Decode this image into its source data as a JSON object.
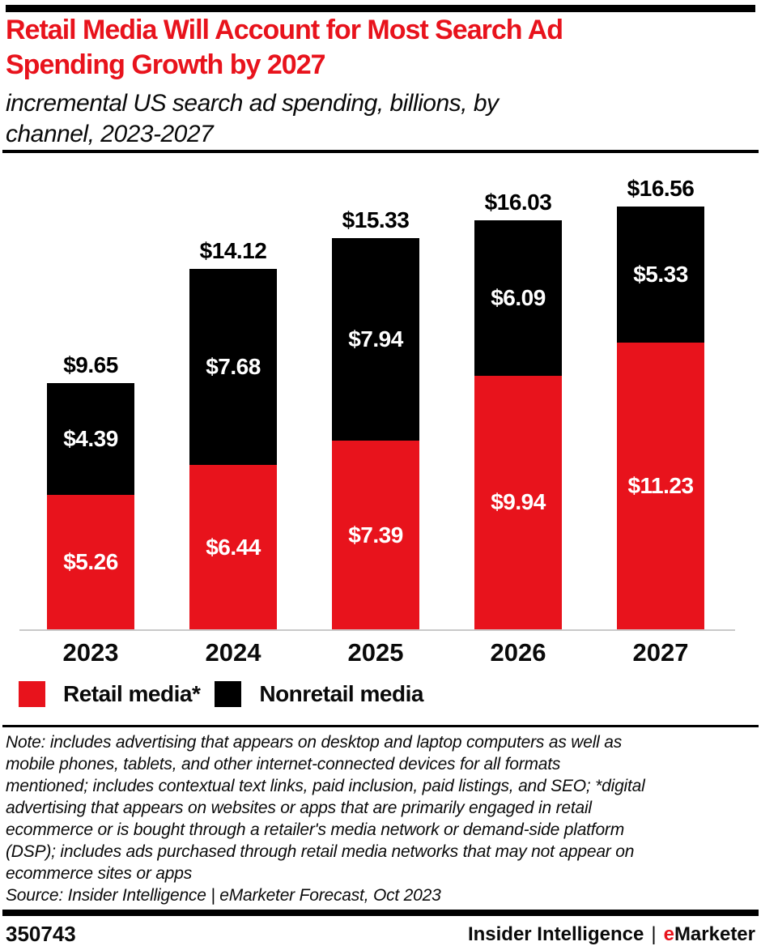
{
  "header": {
    "title": "Retail Media Will Account for Most Search Ad\nSpending Growth by 2027",
    "subtitle": "incremental US search ad spending, billions, by\nchannel, 2023-2027"
  },
  "chart_data": {
    "type": "bar",
    "stacked": true,
    "title": "Retail Media Will Account for Most Search Ad Spending Growth by 2027",
    "subtitle": "incremental US search ad spending, billions, by channel, 2023-2027",
    "xlabel": "",
    "ylabel": "",
    "units": "$ billions",
    "ylim": [
      0,
      16.56
    ],
    "grid": false,
    "legend_position": "bottom",
    "categories": [
      "2023",
      "2024",
      "2025",
      "2026",
      "2027"
    ],
    "series": [
      {
        "name": "Retail media*",
        "color": "#e8131c",
        "values": [
          5.26,
          6.44,
          7.39,
          9.94,
          11.23
        ],
        "labels": [
          "$5.26",
          "$6.44",
          "$7.39",
          "$9.94",
          "$11.23"
        ]
      },
      {
        "name": "Nonretail media",
        "color": "#000000",
        "values": [
          4.39,
          7.68,
          7.94,
          6.09,
          5.33
        ],
        "labels": [
          "$4.39",
          "$7.68",
          "$7.94",
          "$6.09",
          "$5.33"
        ]
      }
    ],
    "totals": [
      9.65,
      14.12,
      15.33,
      16.03,
      16.56
    ],
    "total_labels": [
      "$9.65",
      "$14.12",
      "$15.33",
      "$16.03",
      "$16.56"
    ]
  },
  "legend": {
    "items": [
      {
        "label": "Retail media*",
        "color": "#e8131c"
      },
      {
        "label": "Nonretail media",
        "color": "#000000"
      }
    ]
  },
  "note": {
    "text": "Note: includes advertising that appears on desktop and laptop computers as well as\nmobile phones, tablets, and other internet-connected devices for all formats\nmentioned; includes contextual text links, paid inclusion, paid listings, and SEO; *digital\nadvertising that appears on websites or apps that are primarily engaged in retail\necommerce or is bought through a retailer's media network or demand-side platform\n(DSP); includes ads purchased through retail media networks that may not appear on\necommerce sites or apps",
    "source": "Source: Insider Intelligence | eMarketer Forecast, Oct 2023"
  },
  "footer": {
    "chart_id": "350743",
    "brand_left": "Insider Intelligence",
    "separator": "|",
    "brand_red": "e",
    "brand_rest": "Marketer"
  }
}
